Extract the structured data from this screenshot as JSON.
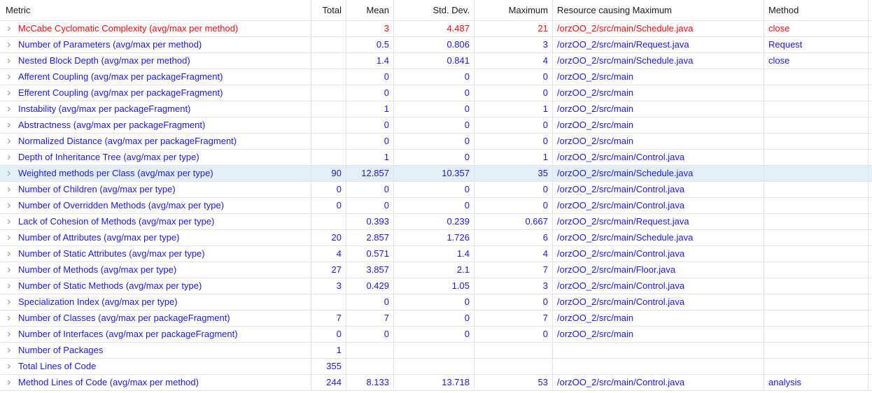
{
  "view": {
    "name": "Metrics View",
    "description": "code metrics table"
  },
  "icons": {
    "expand_chevron": "›"
  },
  "colors": {
    "metric_normal_text": "#1b1ae2",
    "metric_alert_text": "#f10e0e",
    "selected_row_background": "#e2f0fa",
    "gridline": "#e4e4e4",
    "header_text": "#1a1a1a",
    "chevron": "#9b9b9b"
  },
  "table": {
    "columns": [
      {
        "key": "metric",
        "label": "Metric",
        "align": "left"
      },
      {
        "key": "total",
        "label": "Total",
        "align": "right"
      },
      {
        "key": "mean",
        "label": "Mean",
        "align": "right"
      },
      {
        "key": "std_dev",
        "label": "Std. Dev.",
        "align": "right"
      },
      {
        "key": "maximum",
        "label": "Maximum",
        "align": "right"
      },
      {
        "key": "resource",
        "label": "Resource causing Maximum",
        "align": "left"
      },
      {
        "key": "method",
        "label": "Method",
        "align": "left"
      }
    ],
    "rows": [
      {
        "state": "error",
        "cells": [
          "McCabe Cyclomatic Complexity (avg/max per method)",
          "",
          "3",
          "4.487",
          "21",
          "/orzOO_2/src/main/Schedule.java",
          "close"
        ]
      },
      {
        "cells": [
          "Number of Parameters (avg/max per method)",
          "",
          "0.5",
          "0.806",
          "3",
          "/orzOO_2/src/main/Request.java",
          "Request"
        ]
      },
      {
        "cells": [
          "Nested Block Depth (avg/max per method)",
          "",
          "1.4",
          "0.841",
          "4",
          "/orzOO_2/src/main/Schedule.java",
          "close"
        ]
      },
      {
        "cells": [
          "Afferent Coupling (avg/max per packageFragment)",
          "",
          "0",
          "0",
          "0",
          "/orzOO_2/src/main",
          ""
        ]
      },
      {
        "cells": [
          "Efferent Coupling (avg/max per packageFragment)",
          "",
          "0",
          "0",
          "0",
          "/orzOO_2/src/main",
          ""
        ]
      },
      {
        "cells": [
          "Instability (avg/max per packageFragment)",
          "",
          "1",
          "0",
          "1",
          "/orzOO_2/src/main",
          ""
        ]
      },
      {
        "cells": [
          "Abstractness (avg/max per packageFragment)",
          "",
          "0",
          "0",
          "0",
          "/orzOO_2/src/main",
          ""
        ]
      },
      {
        "cells": [
          "Normalized Distance (avg/max per packageFragment)",
          "",
          "0",
          "0",
          "0",
          "/orzOO_2/src/main",
          ""
        ]
      },
      {
        "cells": [
          "Depth of Inheritance Tree (avg/max per type)",
          "",
          "1",
          "0",
          "1",
          "/orzOO_2/src/main/Control.java",
          ""
        ]
      },
      {
        "selected": true,
        "cells": [
          "Weighted methods per Class (avg/max per type)",
          "90",
          "12.857",
          "10.357",
          "35",
          "/orzOO_2/src/main/Schedule.java",
          ""
        ]
      },
      {
        "cells": [
          "Number of Children (avg/max per type)",
          "0",
          "0",
          "0",
          "0",
          "/orzOO_2/src/main/Control.java",
          ""
        ]
      },
      {
        "cells": [
          "Number of Overridden Methods (avg/max per type)",
          "0",
          "0",
          "0",
          "0",
          "/orzOO_2/src/main/Control.java",
          ""
        ]
      },
      {
        "cells": [
          "Lack of Cohesion of Methods (avg/max per type)",
          "",
          "0.393",
          "0.239",
          "0.667",
          "/orzOO_2/src/main/Request.java",
          ""
        ]
      },
      {
        "cells": [
          "Number of Attributes (avg/max per type)",
          "20",
          "2.857",
          "1.726",
          "6",
          "/orzOO_2/src/main/Schedule.java",
          ""
        ]
      },
      {
        "cells": [
          "Number of Static Attributes (avg/max per type)",
          "4",
          "0.571",
          "1.4",
          "4",
          "/orzOO_2/src/main/Control.java",
          ""
        ]
      },
      {
        "cells": [
          "Number of Methods (avg/max per type)",
          "27",
          "3.857",
          "2.1",
          "7",
          "/orzOO_2/src/main/Floor.java",
          ""
        ]
      },
      {
        "cells": [
          "Number of Static Methods (avg/max per type)",
          "3",
          "0.429",
          "1.05",
          "3",
          "/orzOO_2/src/main/Control.java",
          ""
        ]
      },
      {
        "cells": [
          "Specialization Index (avg/max per type)",
          "",
          "0",
          "0",
          "0",
          "/orzOO_2/src/main/Control.java",
          ""
        ]
      },
      {
        "cells": [
          "Number of Classes (avg/max per packageFragment)",
          "7",
          "7",
          "0",
          "7",
          "/orzOO_2/src/main",
          ""
        ]
      },
      {
        "cells": [
          "Number of Interfaces (avg/max per packageFragment)",
          "0",
          "0",
          "0",
          "0",
          "/orzOO_2/src/main",
          ""
        ]
      },
      {
        "cells": [
          "Number of Packages",
          "1",
          "",
          "",
          "",
          "",
          ""
        ]
      },
      {
        "cells": [
          "Total Lines of Code",
          "355",
          "",
          "",
          "",
          "",
          ""
        ]
      },
      {
        "cells": [
          "Method Lines of Code (avg/max per method)",
          "244",
          "8.133",
          "13.718",
          "53",
          "/orzOO_2/src/main/Control.java",
          "analysis"
        ]
      }
    ]
  }
}
